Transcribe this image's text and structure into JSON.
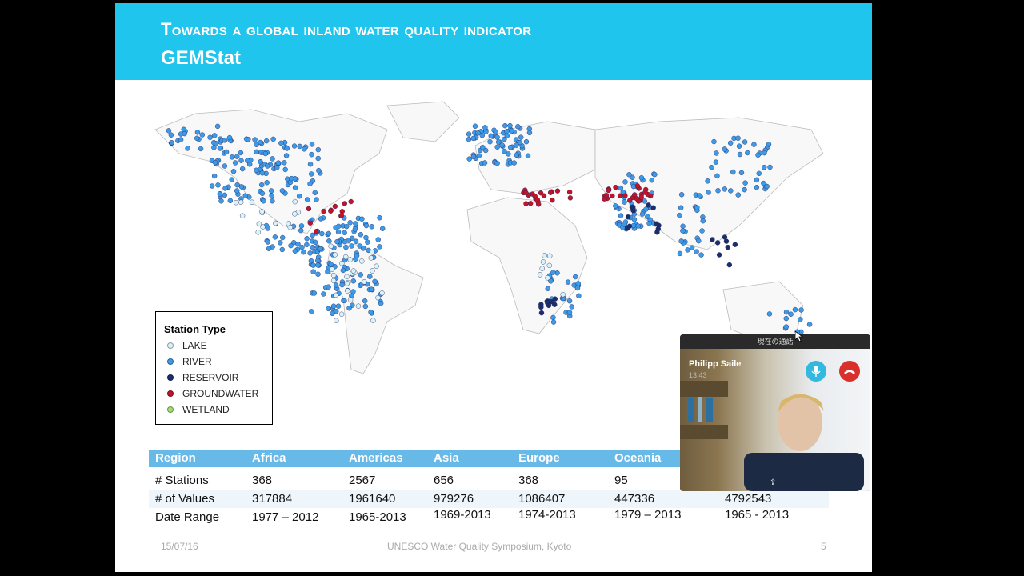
{
  "slide": {
    "title_line1": "Towards a global inland water quality indicator",
    "title_line2": "GEMStat",
    "colors": {
      "header": "#20c5ee",
      "table_header": "#67b9e8"
    }
  },
  "legend": {
    "title": "Station Type",
    "items": [
      {
        "label": "LAKE",
        "color": "#d9f3fa"
      },
      {
        "label": "RIVER",
        "color": "#3d9ae8"
      },
      {
        "label": "RESERVOIR",
        "color": "#1b2f6e"
      },
      {
        "label": "GROUNDWATER",
        "color": "#c0142a"
      },
      {
        "label": "WETLAND",
        "color": "#9fe06a"
      }
    ]
  },
  "table": {
    "headers": [
      "Region",
      "Africa",
      "Americas",
      "Asia",
      "Europe",
      "Oceania",
      ""
    ],
    "rows": [
      [
        "# Stations",
        "368",
        "2567",
        "656",
        "368",
        "95",
        ""
      ],
      [
        "# of Values",
        "317884",
        "1961640",
        "979276",
        "1086407",
        "447336",
        "4792543"
      ],
      [
        "Date Range",
        "1977 – 2012",
        "1965-2013",
        "1969-2013",
        "1974-2013",
        "1979 – 2013",
        "1965 - 2013"
      ]
    ]
  },
  "footer": {
    "date": "15/07/16",
    "event": "UNESCO Water Quality Symposium, Kyoto",
    "page": "5"
  },
  "video_call": {
    "bar_title": "現在の通話",
    "caller_name": "Philipp Saile",
    "time": "13:43",
    "mic_icon": "microphone-icon",
    "end_icon": "phone-hangup-icon"
  }
}
